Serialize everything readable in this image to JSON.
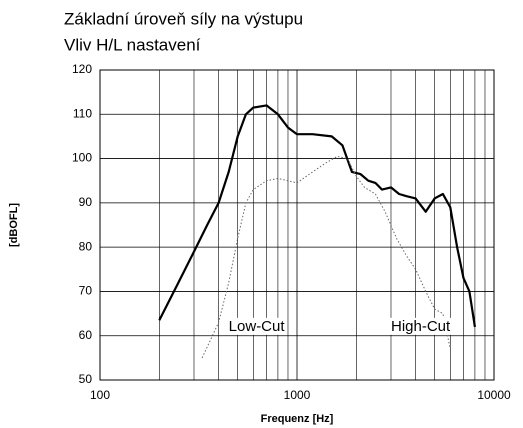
{
  "chart_data": {
    "type": "line",
    "title": "Základní úroveň síly na výstupu",
    "subtitle": "Vliv H/L nastavení",
    "xlabel": "Frequenz [Hz]",
    "ylabel": "[dBOFL]",
    "xscale": "log",
    "xlim": [
      100,
      10000
    ],
    "xticks": [
      100,
      1000,
      10000
    ],
    "xminor_ticks": [
      200,
      300,
      400,
      500,
      600,
      700,
      800,
      900,
      2000,
      3000,
      4000,
      5000,
      6000,
      7000,
      8000,
      9000
    ],
    "ylim": [
      50,
      120
    ],
    "yticks": [
      50,
      60,
      70,
      80,
      90,
      100,
      110,
      120
    ],
    "grid": true,
    "annotations": [
      {
        "text": "Low-Cut",
        "x": 450,
        "y": 62
      },
      {
        "text": "High-Cut",
        "x": 3000,
        "y": 62
      }
    ],
    "series": [
      {
        "color": "#000000",
        "style": "solid",
        "x": [
          200,
          250,
          300,
          350,
          400,
          450,
          500,
          550,
          600,
          700,
          800,
          900,
          1000,
          1200,
          1500,
          1700,
          1900,
          2100,
          2300,
          2500,
          2700,
          3000,
          3300,
          3600,
          4000,
          4500,
          5000,
          5500,
          6000,
          6500,
          7000,
          7500,
          8000
        ],
        "values": [
          63.5,
          72,
          79,
          85,
          90,
          97,
          105,
          110,
          111.5,
          112,
          110,
          107,
          105.5,
          105.5,
          105,
          103,
          97,
          96.5,
          95,
          94.5,
          93,
          93.5,
          92,
          91.5,
          91,
          88,
          91,
          92,
          89,
          80,
          73,
          70,
          62
        ]
      },
      {
        "color": "#666666",
        "style": "dotted",
        "x": [
          330,
          400,
          450,
          500,
          550,
          600,
          700,
          800,
          900,
          1000,
          1200,
          1400,
          1600,
          1800,
          2000,
          2200,
          2500,
          2800,
          3200,
          3600,
          4000,
          4500,
          5000,
          5500,
          6000
        ],
        "values": [
          55,
          63,
          72,
          82,
          90,
          93,
          95,
          95.5,
          95,
          94.5,
          97,
          99,
          100.5,
          100,
          96,
          93.5,
          92,
          88,
          82,
          78,
          75,
          70,
          66,
          65,
          57
        ]
      }
    ]
  }
}
